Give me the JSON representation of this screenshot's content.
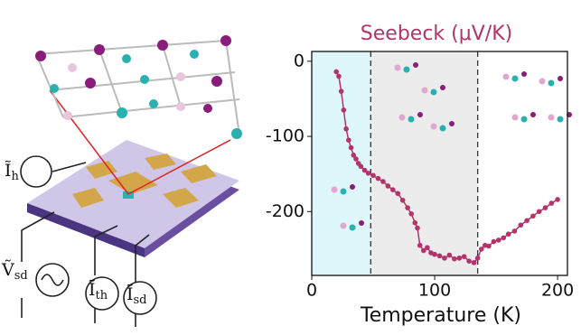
{
  "chart_data": {
    "type": "scatter-line",
    "title": "Seebeck (μV/K)",
    "x_label": "Temperature (K)",
    "xlim": [
      0,
      208
    ],
    "ylim": [
      -285,
      13
    ],
    "xticks": [
      0,
      100,
      200
    ],
    "yticks": [
      0,
      -100,
      -200
    ],
    "regions": [
      {
        "xlim": [
          0,
          48
        ],
        "color": "#ddf7fb"
      },
      {
        "xlim": [
          48,
          135
        ],
        "color": "#ececec"
      }
    ],
    "vlines": [
      48,
      135
    ],
    "x": [
      20,
      22,
      24,
      26,
      28,
      30,
      32,
      34,
      36,
      38,
      40,
      43,
      46,
      50,
      54,
      58,
      62,
      66,
      70,
      74,
      78,
      81,
      84,
      86,
      88,
      91,
      94,
      97,
      100,
      104,
      108,
      112,
      116,
      120,
      124,
      128,
      132,
      135,
      138,
      141,
      144,
      148,
      152,
      156,
      160,
      165,
      170,
      175,
      180,
      185,
      190,
      195,
      200
    ],
    "series": [
      {
        "color": "#b3336b",
        "values": [
          -14,
          -20,
          -40,
          -65,
          -90,
          -105,
          -115,
          -125,
          -130,
          -136,
          -140,
          -145,
          -149,
          -152,
          -156,
          -160,
          -166,
          -171,
          -176,
          -185,
          -195,
          -203,
          -215,
          -222,
          -245,
          -252,
          -248,
          -255,
          -257,
          -259,
          -262,
          -258,
          -263,
          -262,
          -260,
          -266,
          -268,
          -262,
          -250,
          -245,
          -246,
          -240,
          -238,
          -235,
          -230,
          -226,
          -218,
          -212,
          -206,
          -200,
          -195,
          -189,
          -184
        ]
      }
    ]
  },
  "diagram": {
    "labels": [
      {
        "symbol": "Ĩ",
        "sub": "h"
      },
      {
        "symbol": "Ṽ",
        "sub": "sd"
      },
      {
        "symbol": "Ĩ",
        "sub": "th"
      },
      {
        "symbol": "Ĩ",
        "sub": "sd"
      }
    ]
  }
}
